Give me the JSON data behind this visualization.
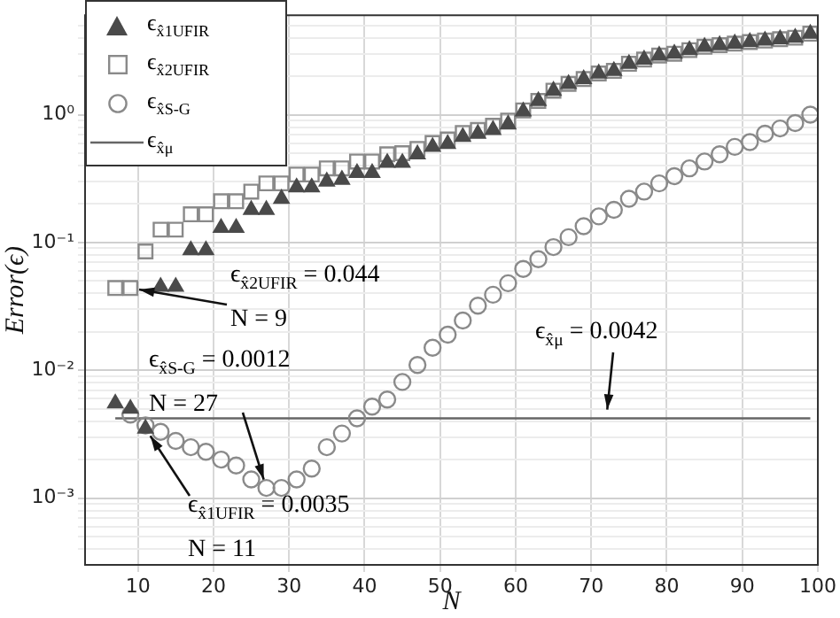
{
  "chart_data": {
    "type": "scatter",
    "xlabel": "N",
    "ylabel": "Error(ϵ)",
    "x": [
      7,
      9,
      11,
      13,
      15,
      17,
      19,
      21,
      23,
      25,
      27,
      29,
      31,
      33,
      35,
      37,
      39,
      41,
      43,
      45,
      47,
      49,
      51,
      53,
      55,
      57,
      59,
      61,
      63,
      65,
      67,
      69,
      71,
      73,
      75,
      77,
      79,
      81,
      83,
      85,
      87,
      89,
      91,
      93,
      95,
      97,
      99
    ],
    "xlim": [
      3,
      100
    ],
    "xticks": [
      10,
      20,
      30,
      40,
      50,
      60,
      70,
      80,
      90,
      100
    ],
    "ylim": [
      0.0003,
      6
    ],
    "log": "y",
    "grid": true,
    "legend": "top left",
    "yticks": [
      {
        "value": 0.0004,
        "label": null
      },
      {
        "value": 0.0005,
        "label": null
      },
      {
        "value": 0.0006,
        "label": null
      },
      {
        "value": 0.0007,
        "label": null
      },
      {
        "value": 0.0008,
        "label": null
      },
      {
        "value": 0.0009,
        "label": null
      },
      {
        "value": 0.001,
        "label": "10⁻³"
      },
      {
        "value": 0.002,
        "label": null
      },
      {
        "value": 0.003,
        "label": null
      },
      {
        "value": 0.004,
        "label": null
      },
      {
        "value": 0.005,
        "label": null
      },
      {
        "value": 0.006,
        "label": null
      },
      {
        "value": 0.007,
        "label": null
      },
      {
        "value": 0.008,
        "label": null
      },
      {
        "value": 0.009,
        "label": null
      },
      {
        "value": 0.01,
        "label": "10⁻²"
      },
      {
        "value": 0.02,
        "label": null
      },
      {
        "value": 0.03,
        "label": null
      },
      {
        "value": 0.04,
        "label": null
      },
      {
        "value": 0.05,
        "label": null
      },
      {
        "value": 0.06,
        "label": null
      },
      {
        "value": 0.07,
        "label": null
      },
      {
        "value": 0.08,
        "label": null
      },
      {
        "value": 0.09,
        "label": null
      },
      {
        "value": 0.1,
        "label": "10⁻¹"
      },
      {
        "value": 0.2,
        "label": null
      },
      {
        "value": 0.3,
        "label": null
      },
      {
        "value": 0.4,
        "label": null
      },
      {
        "value": 0.5,
        "label": null
      },
      {
        "value": 0.6,
        "label": null
      },
      {
        "value": 0.7,
        "label": null
      },
      {
        "value": 0.8,
        "label": null
      },
      {
        "value": 0.9,
        "label": null
      },
      {
        "value": 1,
        "label": "10⁰"
      },
      {
        "value": 2,
        "label": null
      },
      {
        "value": 3,
        "label": null
      },
      {
        "value": 4,
        "label": null
      },
      {
        "value": 5,
        "label": null
      }
    ],
    "series": [
      {
        "name": "ϵ$_{x̂1UFIR}$",
        "marker": "triangle",
        "color": "#4a4a4a",
        "values": [
          0.0055,
          0.005,
          0.0035,
          0.045,
          0.045,
          0.087,
          0.087,
          0.13,
          0.13,
          0.18,
          0.18,
          0.22,
          0.27,
          0.27,
          0.3,
          0.31,
          0.35,
          0.35,
          0.42,
          0.42,
          0.49,
          0.56,
          0.59,
          0.67,
          0.71,
          0.76,
          0.84,
          1.06,
          1.28,
          1.54,
          1.74,
          1.9,
          2.1,
          2.2,
          2.5,
          2.7,
          2.9,
          3.0,
          3.2,
          3.4,
          3.5,
          3.6,
          3.7,
          3.8,
          3.9,
          4.0,
          4.3
        ]
      },
      {
        "name": "ϵ$_{x̂2UFIR}$",
        "marker": "square",
        "color": "#8a8a8a",
        "values": [
          0.044,
          0.044,
          0.085,
          0.126,
          0.126,
          0.166,
          0.166,
          0.21,
          0.21,
          0.25,
          0.29,
          0.29,
          0.34,
          0.34,
          0.38,
          0.38,
          0.43,
          0.43,
          0.49,
          0.5,
          0.54,
          0.6,
          0.64,
          0.72,
          0.76,
          0.82,
          0.9,
          1.08,
          1.28,
          1.54,
          1.74,
          1.9,
          2.1,
          2.2,
          2.5,
          2.7,
          2.9,
          3.0,
          3.2,
          3.4,
          3.5,
          3.6,
          3.7,
          3.8,
          3.9,
          4.0,
          4.3
        ]
      },
      {
        "name": "ϵ$_{x̂S-G}$",
        "marker": "circle",
        "color": "#8a8a8a",
        "values": [
          null,
          0.0045,
          0.0037,
          0.0033,
          0.0028,
          0.0025,
          0.0023,
          0.002,
          0.0018,
          0.0014,
          0.0012,
          0.0012,
          0.0014,
          0.0017,
          0.0025,
          0.0032,
          0.0042,
          0.0052,
          0.0059,
          0.0081,
          0.011,
          0.015,
          0.019,
          0.0245,
          0.032,
          0.039,
          0.048,
          0.062,
          0.074,
          0.092,
          0.11,
          0.134,
          0.16,
          0.18,
          0.22,
          0.25,
          0.29,
          0.33,
          0.38,
          0.43,
          0.49,
          0.56,
          0.61,
          0.71,
          0.78,
          0.86,
          1.0
        ]
      },
      {
        "name": "ϵ$_{x̂μ}$",
        "type": "line",
        "marker": "none",
        "color": "#666666",
        "x": [
          7,
          99
        ],
        "values": [
          0.0042,
          0.0042
        ]
      }
    ],
    "annotations": [
      {
        "text": "ϵ$_{x̂2UFIR}$ = 0.044\nN = 9",
        "x": 9,
        "y": 0.044
      },
      {
        "text": "ϵ$_{x̂S-G}$ = 0.0012\nN = 27",
        "x": 27,
        "y": 0.0012
      },
      {
        "text": "ϵ$_{x̂1UFIR}$ = 0.0035\nN = 11",
        "x": 11,
        "y": 0.0035
      },
      {
        "text": "ϵ$_{x̂μ}$ = 0.0042",
        "x": 72,
        "y": 0.0042
      }
    ]
  }
}
